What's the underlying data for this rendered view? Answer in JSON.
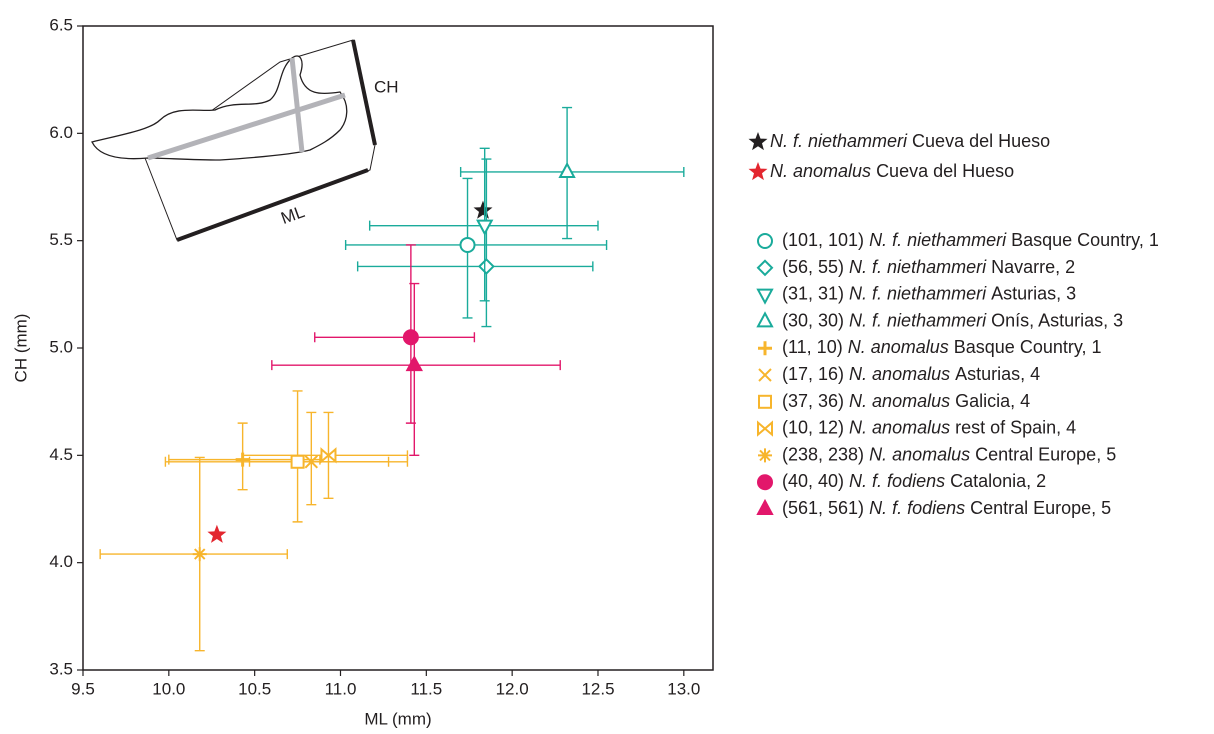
{
  "chart_data": {
    "type": "scatter",
    "x_label": "ML (mm)",
    "y_label": "CH (mm)",
    "xlim": [
      9.5,
      13.17
    ],
    "ylim": [
      3.5,
      6.5
    ],
    "xticks": [
      9.5,
      {
        "value": 10,
        "label": "10.0"
      },
      10.5,
      {
        "value": 11,
        "label": "11.0"
      },
      11.5,
      {
        "value": 12,
        "label": "12.0"
      },
      12.5,
      {
        "value": 13,
        "label": "13.0"
      }
    ],
    "yticks": [
      3.5,
      {
        "value": 4,
        "label": "4.0"
      },
      4.5,
      {
        "value": 5,
        "label": "5.0"
      },
      5.5,
      {
        "value": 6,
        "label": "6.0"
      },
      6.5
    ],
    "inset_labels": [
      "CH",
      "ML"
    ],
    "series": [
      {
        "taxon": "N. f. niethammeri",
        "place": "Cueva del Hueso",
        "color": "#231f20",
        "marker": "star",
        "filled": true,
        "x": [
          11.83
        ],
        "values": [
          5.64
        ]
      },
      {
        "taxon": "N. anomalus",
        "place": "Cueva del Hueso",
        "color": "#e3262f",
        "marker": "star",
        "filled": true,
        "x": [
          10.28
        ],
        "values": [
          4.13
        ]
      },
      {
        "counts": "(101, 101)",
        "taxon": "N. f. niethammeri",
        "place": "Basque Country, 1",
        "color": "#1aab9b",
        "marker": "circle",
        "filled": false,
        "x": [
          11.74
        ],
        "values": [
          5.48
        ],
        "x_low": [
          11.03
        ],
        "x_high": [
          12.55
        ],
        "y_low": [
          5.14
        ],
        "y_high": [
          5.79
        ]
      },
      {
        "counts": "(56, 55)",
        "taxon": "N. f. niethammeri",
        "place": "Navarre, 2",
        "color": "#1aab9b",
        "marker": "diamond",
        "filled": false,
        "x": [
          11.85
        ],
        "values": [
          5.38
        ],
        "x_low": [
          11.1
        ],
        "x_high": [
          12.47
        ],
        "y_low": [
          5.1
        ],
        "y_high": [
          5.88
        ]
      },
      {
        "counts": "(31, 31)",
        "taxon": "N. f. niethammeri",
        "place": "Asturias, 3",
        "color": "#1aab9b",
        "marker": "tri-down",
        "filled": false,
        "x": [
          11.84
        ],
        "values": [
          5.57
        ],
        "x_low": [
          11.17
        ],
        "x_high": [
          12.5
        ],
        "y_low": [
          5.22
        ],
        "y_high": [
          5.93
        ]
      },
      {
        "counts": "(30, 30)",
        "taxon": "N. f. niethammeri",
        "place": "Onís, Asturias, 3",
        "color": "#1aab9b",
        "marker": "tri-up",
        "filled": false,
        "x": [
          12.32
        ],
        "values": [
          5.82
        ],
        "x_low": [
          11.7
        ],
        "x_high": [
          13.0
        ],
        "y_low": [
          5.51
        ],
        "y_high": [
          6.12
        ]
      },
      {
        "counts": "(11, 10)",
        "taxon": "N. anomalus",
        "place": "Basque Country, 1",
        "color": "#f7b52c",
        "marker": "plus",
        "filled": false,
        "x": [
          10.43
        ],
        "values": [
          4.48
        ],
        "x_low": [
          10.0
        ],
        "x_high": [
          10.88
        ],
        "y_low": [
          4.34
        ],
        "y_high": [
          4.65
        ]
      },
      {
        "counts": "(17, 16)",
        "taxon": "N. anomalus",
        "place": "Asturias, 4",
        "color": "#f7b52c",
        "marker": "cross",
        "filled": false,
        "x": [
          10.83
        ],
        "values": [
          4.47
        ],
        "x_low": [
          10.47
        ],
        "x_high": [
          11.39
        ],
        "y_low": [
          4.27
        ],
        "y_high": [
          4.7
        ]
      },
      {
        "counts": "(37, 36)",
        "taxon": "N. anomalus",
        "place": "Galicia, 4",
        "color": "#f7b52c",
        "marker": "square",
        "filled": false,
        "x": [
          10.75
        ],
        "values": [
          4.47
        ],
        "x_low": [
          9.98
        ],
        "x_high": [
          11.28
        ],
        "y_low": [
          4.19
        ],
        "y_high": [
          4.8
        ]
      },
      {
        "counts": "(10, 12)",
        "taxon": "N. anomalus",
        "place": "rest of Spain, 4",
        "color": "#f7b52c",
        "marker": "bowtie",
        "filled": false,
        "x": [
          10.93
        ],
        "values": [
          4.5
        ],
        "x_low": [
          10.43
        ],
        "x_high": [
          11.39
        ],
        "y_low": [
          4.3
        ],
        "y_high": [
          4.7
        ]
      },
      {
        "counts": "(238, 238)",
        "taxon": "N. anomalus",
        "place": "Central Europe, 5",
        "color": "#f7b52c",
        "marker": "asterisk",
        "filled": false,
        "x": [
          10.18
        ],
        "values": [
          4.04
        ],
        "x_low": [
          9.6
        ],
        "x_high": [
          10.69
        ],
        "y_low": [
          3.59
        ],
        "y_high": [
          4.49
        ]
      },
      {
        "counts": "(40, 40)",
        "taxon": "N. f. fodiens",
        "place": "Catalonia, 2",
        "color": "#e2176b",
        "marker": "circle",
        "filled": true,
        "x": [
          11.41
        ],
        "values": [
          5.05
        ],
        "x_low": [
          10.85
        ],
        "x_high": [
          11.78
        ],
        "y_low": [
          4.65
        ],
        "y_high": [
          5.48
        ]
      },
      {
        "counts": "(561, 561)",
        "taxon": "N. f. fodiens",
        "place": "Central Europe, 5",
        "color": "#e2176b",
        "marker": "tri-up",
        "filled": true,
        "x": [
          11.43
        ],
        "values": [
          4.92
        ],
        "x_low": [
          10.6
        ],
        "x_high": [
          12.28
        ],
        "y_low": [
          4.5
        ],
        "y_high": [
          5.3
        ]
      }
    ]
  }
}
